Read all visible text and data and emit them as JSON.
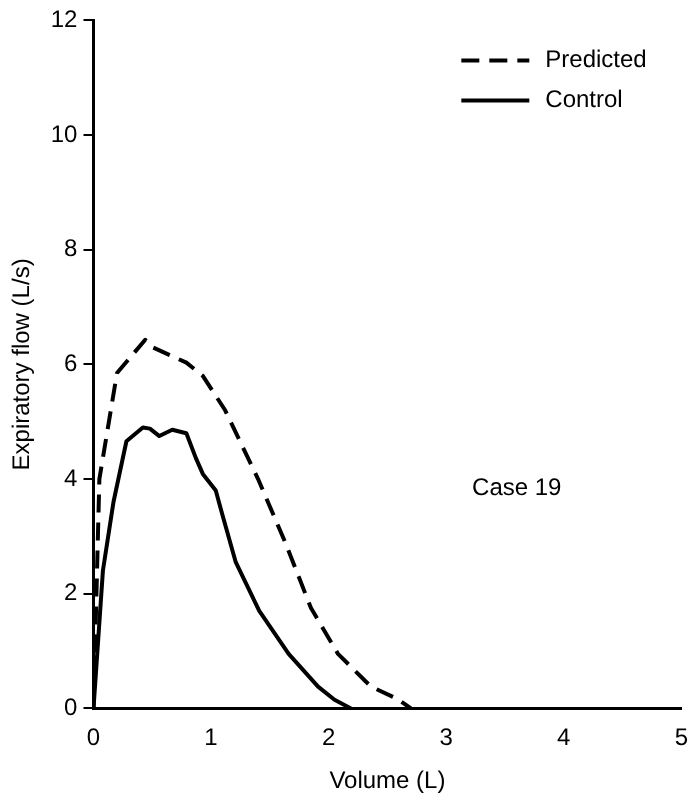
{
  "chart_data": {
    "type": "line",
    "xlabel": "Volume (L)",
    "ylabel": "Expiratory flow (L/s)",
    "xlim": [
      0,
      5
    ],
    "xticks": [
      0,
      1,
      2,
      3,
      4,
      5
    ],
    "ylim": [
      0,
      12
    ],
    "yticks": [
      0,
      2,
      4,
      6,
      8,
      10,
      12
    ],
    "grid": false,
    "legend": "top right",
    "marker": "none",
    "annotations": [
      "Case 19"
    ],
    "series": [
      {
        "name": "Predicted",
        "color": "#000000",
        "line_style": "dashed",
        "x": [
          0,
          0.05,
          0.2,
          0.44,
          0.5,
          0.79,
          0.93,
          1.12,
          1.4,
          1.63,
          1.85,
          2.08,
          2.36,
          2.58,
          2.7
        ],
        "values": [
          0,
          4.0,
          5.85,
          6.43,
          6.3,
          6.03,
          5.8,
          5.2,
          4.0,
          2.9,
          1.75,
          0.95,
          0.38,
          0.17,
          0
        ]
      },
      {
        "name": "Control",
        "color": "#000000",
        "line_style": "solid",
        "x": [
          0,
          0.08,
          0.17,
          0.28,
          0.42,
          0.48,
          0.56,
          0.67,
          0.79,
          0.87,
          0.93,
          1.04,
          1.1,
          1.21,
          1.41,
          1.66,
          1.91,
          2.05,
          2.19
        ],
        "values": [
          0,
          2.4,
          3.6,
          4.66,
          4.9,
          4.88,
          4.75,
          4.86,
          4.8,
          4.37,
          4.09,
          3.8,
          3.35,
          2.55,
          1.7,
          0.95,
          0.38,
          0.15,
          0
        ]
      }
    ]
  }
}
